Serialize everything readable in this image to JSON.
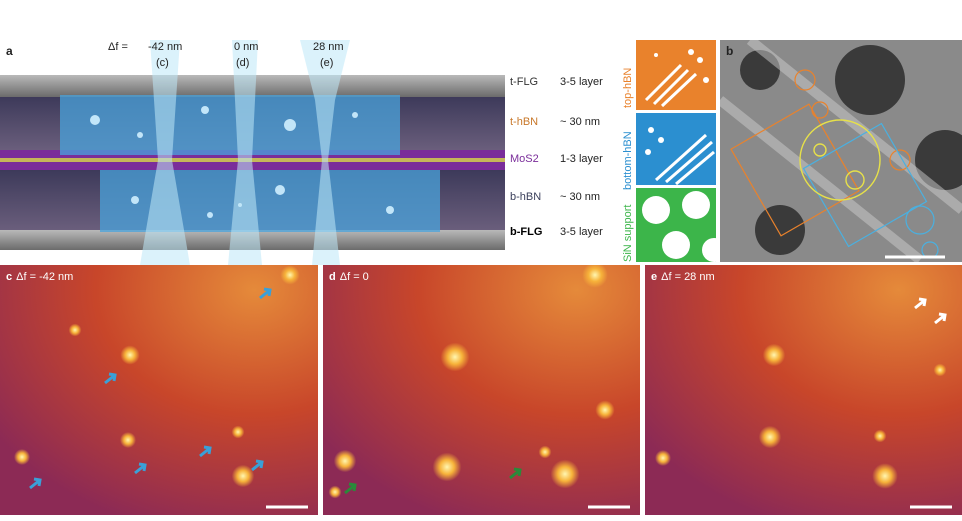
{
  "panel_a": {
    "label": "a",
    "df_label": "Δf =",
    "beams": [
      {
        "value": "-42 nm",
        "ref": "(c)"
      },
      {
        "value": "0 nm",
        "ref": "(d)"
      },
      {
        "value": "28 nm",
        "ref": "(e)"
      }
    ],
    "layers": [
      {
        "name": "t-FLG",
        "thickness": "3-5 layer"
      },
      {
        "name": "t-hBN",
        "thickness": "~ 30 nm"
      },
      {
        "name": "MoS2",
        "thickness": "1-3 layer"
      },
      {
        "name": "b-hBN",
        "thickness": "~ 30 nm"
      },
      {
        "name": "b-FLG",
        "thickness": "3-5 layer"
      }
    ]
  },
  "stack_labels": [
    "top-hBN",
    "bottom-hBN",
    "SiN support"
  ],
  "panel_b": {
    "label": "b"
  },
  "panels": [
    {
      "label": "c",
      "caption": "Δf = -42 nm"
    },
    {
      "label": "d",
      "caption": "Δf = 0"
    },
    {
      "label": "e",
      "caption": "Δf = 28 nm"
    }
  ]
}
